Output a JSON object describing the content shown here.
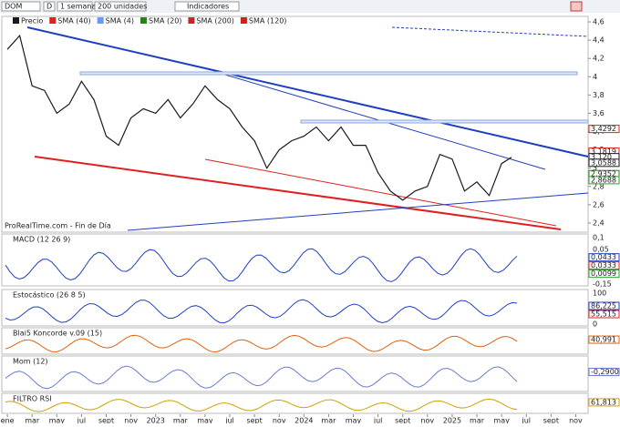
{
  "toolbar": {
    "symbol": "DOM",
    "period_button": "D",
    "period": "1 semana",
    "units": "200 unidades",
    "indicators": "Indicadores"
  },
  "legend": [
    {
      "name": "Precio",
      "color": "#1a1a1a"
    },
    {
      "name": "SMA (40)",
      "color": "#e02020"
    },
    {
      "name": "SMA (4)",
      "color": "#6699ff"
    },
    {
      "name": "SMA (20)",
      "color": "#2e7d1e"
    },
    {
      "name": "SMA (200)",
      "color": "#c62828"
    },
    {
      "name": "SMA (120)",
      "color": "#cc2222"
    }
  ],
  "watermark": "ProRealTime.com - Fin de Día",
  "chart_data": {
    "type": "line",
    "x_unit_months": true,
    "x": [
      0,
      1,
      2,
      3,
      4,
      5,
      6,
      7,
      8,
      9,
      10,
      11,
      12,
      13,
      14,
      15,
      16,
      17,
      18,
      19,
      20,
      21,
      22,
      23,
      24,
      25,
      26,
      27,
      28,
      29,
      30,
      31,
      32,
      33,
      34,
      35,
      36,
      37,
      38,
      39,
      40,
      40.8
    ],
    "series": [
      {
        "name": "Precio",
        "color": "#1a1a1a",
        "values": [
          4.3,
          4.45,
          3.9,
          3.85,
          3.6,
          3.7,
          3.95,
          3.75,
          3.35,
          3.25,
          3.55,
          3.65,
          3.6,
          3.75,
          3.55,
          3.7,
          3.9,
          3.75,
          3.65,
          3.45,
          3.3,
          3.0,
          3.2,
          3.3,
          3.35,
          3.45,
          3.3,
          3.45,
          3.25,
          3.25,
          2.95,
          2.75,
          2.65,
          2.75,
          2.8,
          3.15,
          3.1,
          2.75,
          2.85,
          2.7,
          3.05,
          3.12
        ]
      }
    ],
    "xlim": [
      -0.45,
      47
    ],
    "xticks": [
      {
        "value": 0,
        "label": "ene"
      },
      {
        "value": 2,
        "label": "mar"
      },
      {
        "value": 4,
        "label": "may"
      },
      {
        "value": 6,
        "label": "jul"
      },
      {
        "value": 8,
        "label": "sept"
      },
      {
        "value": 10,
        "label": "nov"
      },
      {
        "value": 12,
        "label": "2023"
      },
      {
        "value": 14,
        "label": "mar"
      },
      {
        "value": 16,
        "label": "may"
      },
      {
        "value": 18,
        "label": "jul"
      },
      {
        "value": 20,
        "label": "sept"
      },
      {
        "value": 22,
        "label": "nov"
      },
      {
        "value": 24,
        "label": "2024"
      },
      {
        "value": 26,
        "label": "mar"
      },
      {
        "value": 28,
        "label": "may"
      },
      {
        "value": 30,
        "label": "jul"
      },
      {
        "value": 32,
        "label": "sept"
      },
      {
        "value": 34,
        "label": "nov"
      },
      {
        "value": 36,
        "label": "2025"
      },
      {
        "value": 38,
        "label": "mar"
      },
      {
        "value": 40,
        "label": "may"
      },
      {
        "value": 42,
        "label": "jul"
      },
      {
        "value": 44,
        "label": "sept"
      },
      {
        "value": 46,
        "label": "nov"
      }
    ],
    "ylim": [
      2.3,
      4.66
    ],
    "yticks": [
      {
        "value": 4.6,
        "label": "4,6"
      },
      {
        "value": 4.4,
        "label": "4,4"
      },
      {
        "value": 4.2,
        "label": "4,2"
      },
      4,
      {
        "value": 3.8,
        "label": "3,8"
      },
      {
        "value": 3.6,
        "label": "3,6"
      },
      {
        "value": 3.4,
        "label": "3,4"
      },
      {
        "value": 3.2,
        "label": "3,2"
      },
      3,
      {
        "value": 2.8,
        "label": "2,8"
      },
      {
        "value": 2.6,
        "label": "2,6"
      },
      {
        "value": 2.4,
        "label": "2,4"
      }
    ],
    "price_labels": [
      {
        "value": 3.4292,
        "label": "3,4292",
        "color": "#e02020"
      },
      {
        "value": 3.1819,
        "label": "3,1819",
        "color": "#e02020"
      },
      {
        "value": 3.12,
        "label": "3,120",
        "color": "#1a1a1a"
      },
      {
        "value": 3.0588,
        "label": "3,0588",
        "color": "#1a1a1a"
      },
      {
        "value": 2.9352,
        "label": "2,9352",
        "color": "#2e7d1e"
      },
      {
        "value": 2.8688,
        "label": "2,8688",
        "color": "#2e9e2e"
      }
    ]
  },
  "panels": [
    {
      "title": "MACD (12 26 9)",
      "ticks": [
        "0,1",
        "0,05",
        "-0,05",
        "-0,1",
        "-0,15"
      ],
      "values": [
        "0,0433",
        "0,0333",
        "0,0099"
      ]
    },
    {
      "title": "Estocástico (26 8 5)",
      "ticks": [
        "100",
        "50",
        "0"
      ],
      "values": [
        "86,225",
        "55,515"
      ]
    },
    {
      "title": "Blai5 Koncorde v.09 (15)",
      "ticks": [],
      "values": [
        "40,991"
      ]
    },
    {
      "title": "Mom (12)",
      "ticks": [],
      "values": [
        "-0,2900"
      ]
    },
    {
      "title": "FILTRO RSI",
      "ticks": [],
      "values": [
        "61,813"
      ]
    }
  ]
}
